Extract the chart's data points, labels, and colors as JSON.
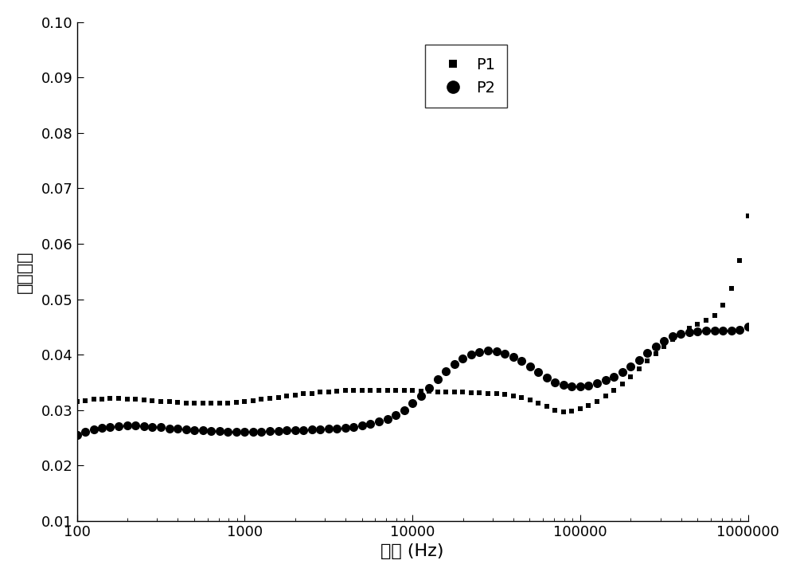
{
  "title": "",
  "xlabel": "频率 (Hz)",
  "ylabel": "介电损耗",
  "xlim": [
    100,
    1000000
  ],
  "ylim": [
    0.01,
    0.1
  ],
  "yticks": [
    0.01,
    0.02,
    0.03,
    0.04,
    0.05,
    0.06,
    0.07,
    0.08,
    0.09,
    0.1
  ],
  "legend_labels": [
    "P1",
    "P2"
  ],
  "background_color": "#ffffff",
  "P1_x": [
    100,
    112,
    126,
    141,
    158,
    178,
    200,
    224,
    251,
    282,
    316,
    355,
    398,
    447,
    501,
    562,
    631,
    708,
    794,
    891,
    1000,
    1122,
    1259,
    1413,
    1585,
    1778,
    1995,
    2239,
    2512,
    2818,
    3162,
    3548,
    3981,
    4467,
    5012,
    5623,
    6310,
    7079,
    7943,
    8913,
    10000,
    11220,
    12589,
    14125,
    15849,
    17783,
    19953,
    22387,
    25119,
    28184,
    31623,
    35481,
    39811,
    44668,
    50119,
    56234,
    63096,
    70795,
    79433,
    89125,
    100000,
    112202,
    125893,
    141254,
    158489,
    177828,
    199526,
    223872,
    251189,
    281838,
    316228,
    354813,
    398107,
    446684,
    501187,
    562341,
    630957,
    707946,
    794328,
    891251,
    1000000
  ],
  "P1_y": [
    0.0315,
    0.0317,
    0.0319,
    0.032,
    0.0321,
    0.0321,
    0.032,
    0.0319,
    0.0318,
    0.0317,
    0.0316,
    0.0315,
    0.0314,
    0.0313,
    0.0312,
    0.0312,
    0.0312,
    0.0312,
    0.0313,
    0.0314,
    0.0315,
    0.0317,
    0.0319,
    0.0321,
    0.0323,
    0.0325,
    0.0327,
    0.0329,
    0.033,
    0.0332,
    0.0333,
    0.0334,
    0.0335,
    0.0335,
    0.0336,
    0.0336,
    0.0336,
    0.0336,
    0.0336,
    0.0335,
    0.0335,
    0.0334,
    0.0334,
    0.0333,
    0.0333,
    0.0332,
    0.0332,
    0.0331,
    0.0331,
    0.033,
    0.033,
    0.0328,
    0.0325,
    0.0322,
    0.0318,
    0.0313,
    0.0307,
    0.03,
    0.0297,
    0.0298,
    0.0302,
    0.0308,
    0.0316,
    0.0326,
    0.0336,
    0.0347,
    0.036,
    0.0374,
    0.0388,
    0.0402,
    0.0415,
    0.0427,
    0.0438,
    0.0447,
    0.0455,
    0.0462,
    0.047,
    0.049,
    0.052,
    0.057,
    0.065
  ],
  "P2_x": [
    100,
    112,
    126,
    141,
    158,
    178,
    200,
    224,
    251,
    282,
    316,
    355,
    398,
    447,
    501,
    562,
    631,
    708,
    794,
    891,
    1000,
    1122,
    1259,
    1413,
    1585,
    1778,
    1995,
    2239,
    2512,
    2818,
    3162,
    3548,
    3981,
    4467,
    5012,
    5623,
    6310,
    7079,
    7943,
    8913,
    10000,
    11220,
    12589,
    14125,
    15849,
    17783,
    19953,
    22387,
    25119,
    28184,
    31623,
    35481,
    39811,
    44668,
    50119,
    56234,
    63096,
    70795,
    79433,
    89125,
    100000,
    112202,
    125893,
    141254,
    158489,
    177828,
    199526,
    223872,
    251189,
    281838,
    316228,
    354813,
    398107,
    446684,
    501187,
    562341,
    630957,
    707946,
    794328,
    891251,
    1000000
  ],
  "P2_y": [
    0.0255,
    0.026,
    0.0265,
    0.0268,
    0.027,
    0.0271,
    0.0272,
    0.0272,
    0.0271,
    0.027,
    0.0269,
    0.0267,
    0.0266,
    0.0265,
    0.0264,
    0.0263,
    0.0262,
    0.0262,
    0.0261,
    0.0261,
    0.0261,
    0.0261,
    0.0261,
    0.0262,
    0.0262,
    0.0263,
    0.0263,
    0.0264,
    0.0265,
    0.0265,
    0.0266,
    0.0267,
    0.0268,
    0.027,
    0.0272,
    0.0275,
    0.0279,
    0.0284,
    0.0291,
    0.03,
    0.0312,
    0.0325,
    0.034,
    0.0355,
    0.037,
    0.0383,
    0.0393,
    0.04,
    0.0405,
    0.0407,
    0.0406,
    0.0402,
    0.0396,
    0.0388,
    0.0378,
    0.0368,
    0.0358,
    0.035,
    0.0345,
    0.0342,
    0.0342,
    0.0344,
    0.0348,
    0.0354,
    0.036,
    0.0368,
    0.0378,
    0.039,
    0.0403,
    0.0415,
    0.0425,
    0.0433,
    0.0438,
    0.0441,
    0.0442,
    0.0443,
    0.0443,
    0.0443,
    0.0443,
    0.0445,
    0.045
  ]
}
